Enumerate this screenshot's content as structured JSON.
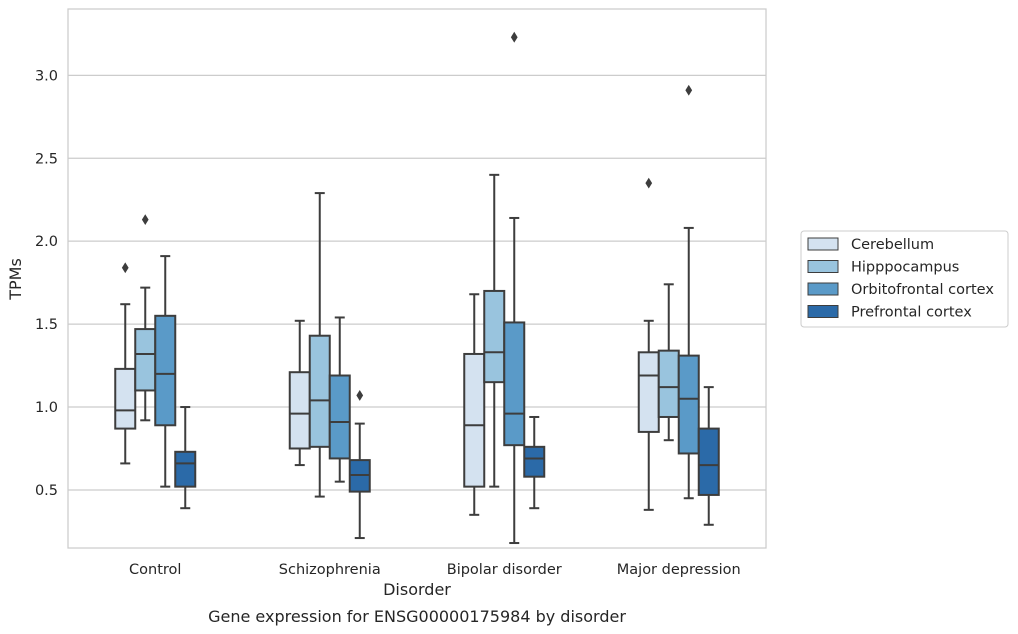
{
  "chart_data": {
    "type": "boxplot",
    "caption": "Gene expression for ENSG00000175984 by disorder",
    "xlabel": "Disorder",
    "ylabel": "TPMs",
    "ylim": [
      0.15,
      3.4
    ],
    "yticks": [
      0.5,
      1.0,
      1.5,
      2.0,
      2.5,
      3.0
    ],
    "ytick_labels": [
      "0.5",
      "1.0",
      "1.5",
      "2.0",
      "2.5",
      "3.0"
    ],
    "grid": "horizontal",
    "legend_position": "right",
    "categories": [
      "Control",
      "Schizophrenia",
      "Bipolar disorder",
      "Major depression"
    ],
    "series": [
      {
        "name": "Cerebellum",
        "color": "#d4e2f0",
        "boxes": [
          {
            "whislo": 0.66,
            "q1": 0.87,
            "med": 0.98,
            "q3": 1.23,
            "whishi": 1.62,
            "fliers": [
              1.84
            ]
          },
          {
            "whislo": 0.65,
            "q1": 0.75,
            "med": 0.96,
            "q3": 1.21,
            "whishi": 1.52,
            "fliers": []
          },
          {
            "whislo": 0.35,
            "q1": 0.52,
            "med": 0.89,
            "q3": 1.32,
            "whishi": 1.68,
            "fliers": []
          },
          {
            "whislo": 0.38,
            "q1": 0.85,
            "med": 1.19,
            "q3": 1.33,
            "whishi": 1.52,
            "fliers": [
              2.35
            ]
          }
        ]
      },
      {
        "name": "Hipppocampus",
        "color": "#99c4de",
        "boxes": [
          {
            "whislo": 0.92,
            "q1": 1.1,
            "med": 1.32,
            "q3": 1.47,
            "whishi": 1.72,
            "fliers": [
              2.13
            ]
          },
          {
            "whislo": 0.46,
            "q1": 0.76,
            "med": 1.04,
            "q3": 1.43,
            "whishi": 2.29,
            "fliers": []
          },
          {
            "whislo": 0.52,
            "q1": 1.15,
            "med": 1.33,
            "q3": 1.7,
            "whishi": 2.4,
            "fliers": []
          },
          {
            "whislo": 0.8,
            "q1": 0.94,
            "med": 1.12,
            "q3": 1.34,
            "whishi": 1.74,
            "fliers": []
          }
        ]
      },
      {
        "name": "Orbitofrontal cortex",
        "color": "#5a9ac8",
        "boxes": [
          {
            "whislo": 0.52,
            "q1": 0.89,
            "med": 1.2,
            "q3": 1.55,
            "whishi": 1.91,
            "fliers": []
          },
          {
            "whislo": 0.55,
            "q1": 0.69,
            "med": 0.91,
            "q3": 1.19,
            "whishi": 1.54,
            "fliers": []
          },
          {
            "whislo": 0.18,
            "q1": 0.77,
            "med": 0.96,
            "q3": 1.51,
            "whishi": 2.14,
            "fliers": [
              3.23
            ]
          },
          {
            "whislo": 0.45,
            "q1": 0.72,
            "med": 1.05,
            "q3": 1.31,
            "whishi": 2.08,
            "fliers": [
              2.91
            ]
          }
        ]
      },
      {
        "name": "Prefrontal cortex",
        "color": "#2b6aa8",
        "boxes": [
          {
            "whislo": 0.39,
            "q1": 0.52,
            "med": 0.66,
            "q3": 0.73,
            "whishi": 1.0,
            "fliers": []
          },
          {
            "whislo": 0.21,
            "q1": 0.49,
            "med": 0.59,
            "q3": 0.68,
            "whishi": 0.9,
            "fliers": [
              1.07
            ]
          },
          {
            "whislo": 0.39,
            "q1": 0.58,
            "med": 0.69,
            "q3": 0.76,
            "whishi": 0.94,
            "fliers": []
          },
          {
            "whislo": 0.29,
            "q1": 0.47,
            "med": 0.65,
            "q3": 0.87,
            "whishi": 1.12,
            "fliers": []
          }
        ]
      }
    ]
  }
}
